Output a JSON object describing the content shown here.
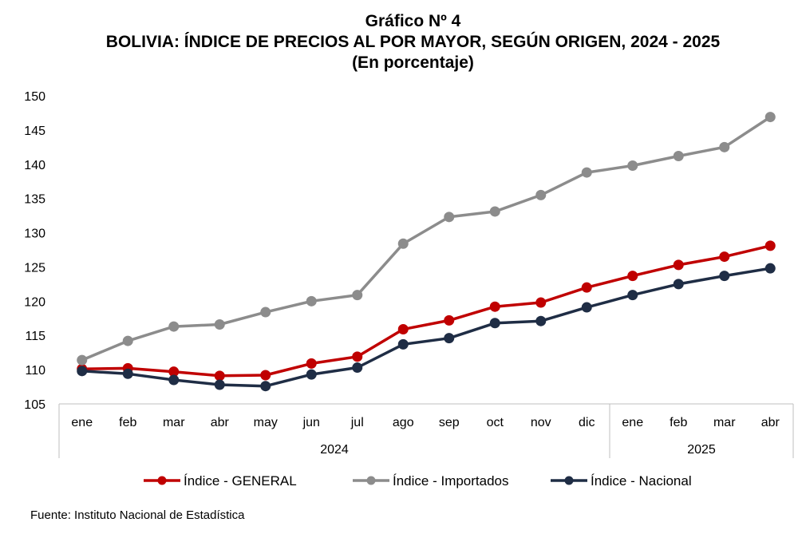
{
  "title": "Gráfico Nº 4",
  "subtitle": "BOLIVIA: ÍNDICE DE PRECIOS AL POR MAYOR, SEGÚN ORIGEN, 2024 - 2025",
  "unit_line": "(En porcentaje)",
  "source": "Fuente: Instituto Nacional de Estadística",
  "chart_data": {
    "type": "line",
    "categories": [
      "ene",
      "feb",
      "mar",
      "abr",
      "may",
      "jun",
      "jul",
      "ago",
      "sep",
      "oct",
      "nov",
      "dic",
      "ene",
      "feb",
      "mar",
      "abr"
    ],
    "year_groups": [
      {
        "label": "2024",
        "start": 0,
        "end": 11
      },
      {
        "label": "2025",
        "start": 12,
        "end": 15
      }
    ],
    "ylim": [
      105,
      150
    ],
    "yticks": [
      105,
      110,
      115,
      120,
      125,
      130,
      135,
      140,
      145,
      150
    ],
    "grid": false,
    "legend_position": "bottom",
    "series": [
      {
        "name": "Índice - GENERAL",
        "color": "#c00000",
        "values": [
          110.1,
          110.2,
          109.7,
          109.1,
          109.2,
          110.9,
          111.9,
          115.9,
          117.2,
          119.2,
          119.8,
          122.0,
          123.7,
          125.3,
          126.5,
          128.1
        ]
      },
      {
        "name": "Índice - Importados",
        "color": "#8c8c8c",
        "values": [
          111.4,
          114.2,
          116.3,
          116.6,
          118.4,
          120.0,
          120.9,
          128.4,
          132.3,
          133.1,
          135.5,
          138.8,
          139.8,
          141.2,
          142.5,
          146.9
        ]
      },
      {
        "name": "Índice - Nacional",
        "color": "#1f2d45",
        "values": [
          109.8,
          109.4,
          108.5,
          107.8,
          107.6,
          109.3,
          110.3,
          113.7,
          114.6,
          116.8,
          117.1,
          119.1,
          120.9,
          122.5,
          123.7,
          124.8
        ]
      }
    ]
  }
}
